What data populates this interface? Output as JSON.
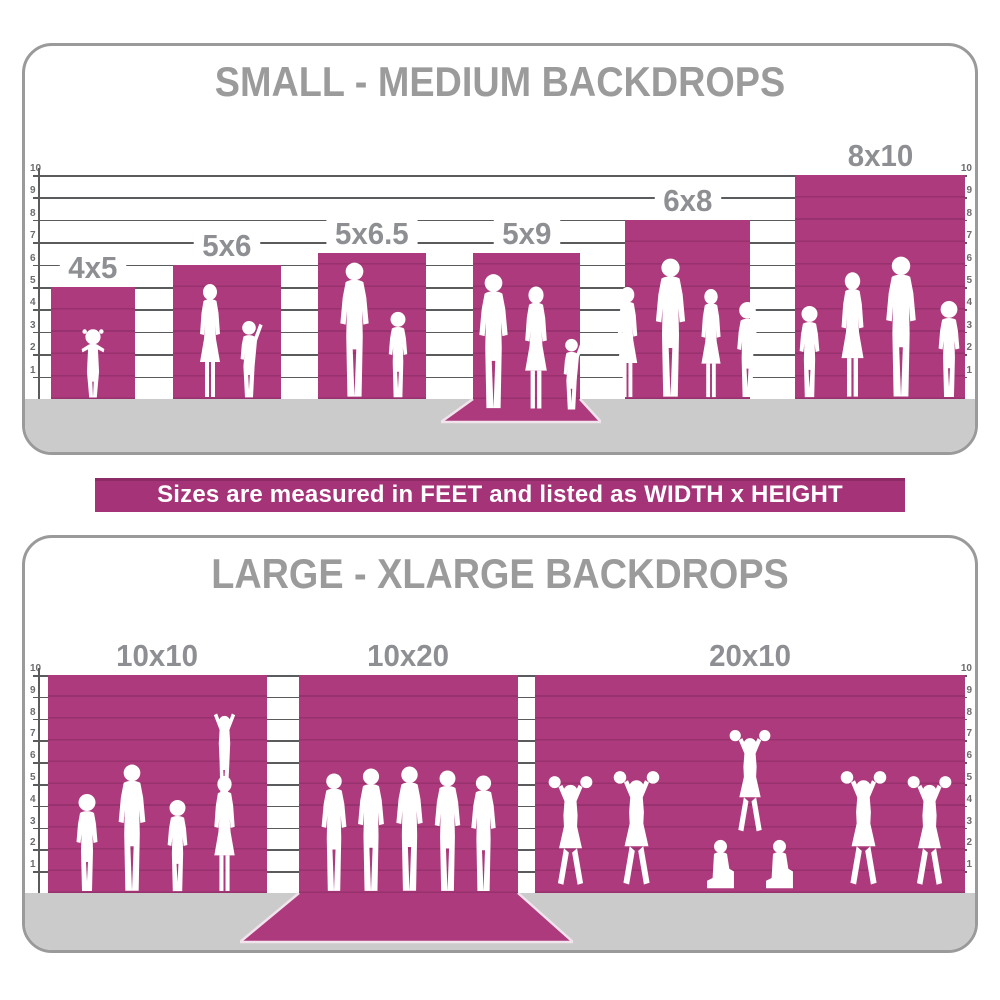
{
  "banner": {
    "text": "Sizes are measured in FEET and listed as WIDTH x HEIGHT",
    "bg_color": "#a53377",
    "text_color": "#ffffff"
  },
  "colors": {
    "backdrop_pink": "#ac3a7c",
    "banner_pink": "#a53377",
    "title_gray": "#9b9b9b",
    "label_gray": "#8d8f92",
    "gridline_gray": "#5a5b5d",
    "tick_gray": "#6b6c6e",
    "floor_gray": "#cbcbcb",
    "silhouette_white": "#ffffff",
    "panel_border_gray": "#9a9a9a"
  },
  "panels": [
    {
      "title": "SMALL - MEDIUM BACKDROPS",
      "axis": {
        "unit": "feet",
        "ticks": [
          "1",
          "2",
          "3",
          "4",
          "5",
          "6",
          "7",
          "8",
          "9",
          "10"
        ]
      },
      "bars": [
        {
          "label": "4x5",
          "width_ft": 4,
          "height_ft": 5,
          "floor_sweep": false,
          "figures": [
            "toddler-girl"
          ]
        },
        {
          "label": "5x6",
          "width_ft": 5,
          "height_ft": 6,
          "floor_sweep": false,
          "figures": [
            "woman",
            "child-arm-raised"
          ]
        },
        {
          "label": "5x6.5",
          "width_ft": 5,
          "height_ft": 6.5,
          "floor_sweep": false,
          "figures": [
            "man",
            "boy"
          ]
        },
        {
          "label": "5x9",
          "width_ft": 5,
          "height_ft": 9,
          "floor_sweep": true,
          "figures": [
            "man",
            "woman",
            "child-arm-raised"
          ]
        },
        {
          "label": "6x8",
          "width_ft": 6,
          "height_ft": 8,
          "floor_sweep": false,
          "figures": [
            "woman",
            "man",
            "woman",
            "boy"
          ]
        },
        {
          "label": "8x10",
          "width_ft": 8,
          "height_ft": 10,
          "floor_sweep": false,
          "figures": [
            "girl",
            "woman",
            "man",
            "boy"
          ]
        }
      ]
    },
    {
      "title": "LARGE - XLARGE BACKDROPS",
      "axis": {
        "unit": "feet",
        "ticks": [
          "1",
          "2",
          "3",
          "4",
          "5",
          "6",
          "7",
          "8",
          "9",
          "10"
        ]
      },
      "bars": [
        {
          "label": "10x10",
          "width_ft": 10,
          "height_ft": 10,
          "floor_sweep": false,
          "figures": [
            "boy",
            "man",
            "girl",
            "woman-with-child-on-shoulders"
          ]
        },
        {
          "label": "10x20",
          "width_ft": 10,
          "height_ft": 20,
          "floor_sweep": true,
          "figures": [
            "man",
            "man",
            "man",
            "man",
            "man"
          ]
        },
        {
          "label": "20x10",
          "width_ft": 20,
          "height_ft": 10,
          "floor_sweep": false,
          "figures": [
            "cheerleader",
            "cheerleader",
            "cheer-pyramid",
            "cheerleader",
            "cheerleader"
          ]
        }
      ]
    }
  ],
  "chart_data": [
    {
      "type": "bar",
      "title": "SMALL - MEDIUM BACKDROPS",
      "categories": [
        "4x5",
        "5x6",
        "5x6.5",
        "5x9",
        "6x8",
        "8x10"
      ],
      "values": [
        5,
        6,
        6.5,
        9,
        8,
        10
      ],
      "displayed_height_ft": [
        5,
        6,
        6.5,
        6.5,
        8,
        10
      ],
      "bar_widths_ft": [
        4,
        5,
        5,
        5,
        6,
        8
      ],
      "xlabel": "",
      "ylabel": "feet",
      "ylim": [
        0,
        10
      ],
      "grid": true,
      "annotations": [
        "5x9 drawn with floor sweep onto the ground"
      ]
    },
    {
      "type": "bar",
      "title": "LARGE - XLARGE BACKDROPS",
      "categories": [
        "10x10",
        "10x20",
        "20x10"
      ],
      "values": [
        10,
        20,
        10
      ],
      "displayed_height_ft": [
        10,
        10,
        10
      ],
      "bar_widths_ft": [
        10,
        10,
        20
      ],
      "xlabel": "",
      "ylabel": "feet",
      "ylim": [
        0,
        10
      ],
      "grid": true,
      "annotations": [
        "10x20 drawn with floor sweep onto the ground"
      ]
    }
  ]
}
